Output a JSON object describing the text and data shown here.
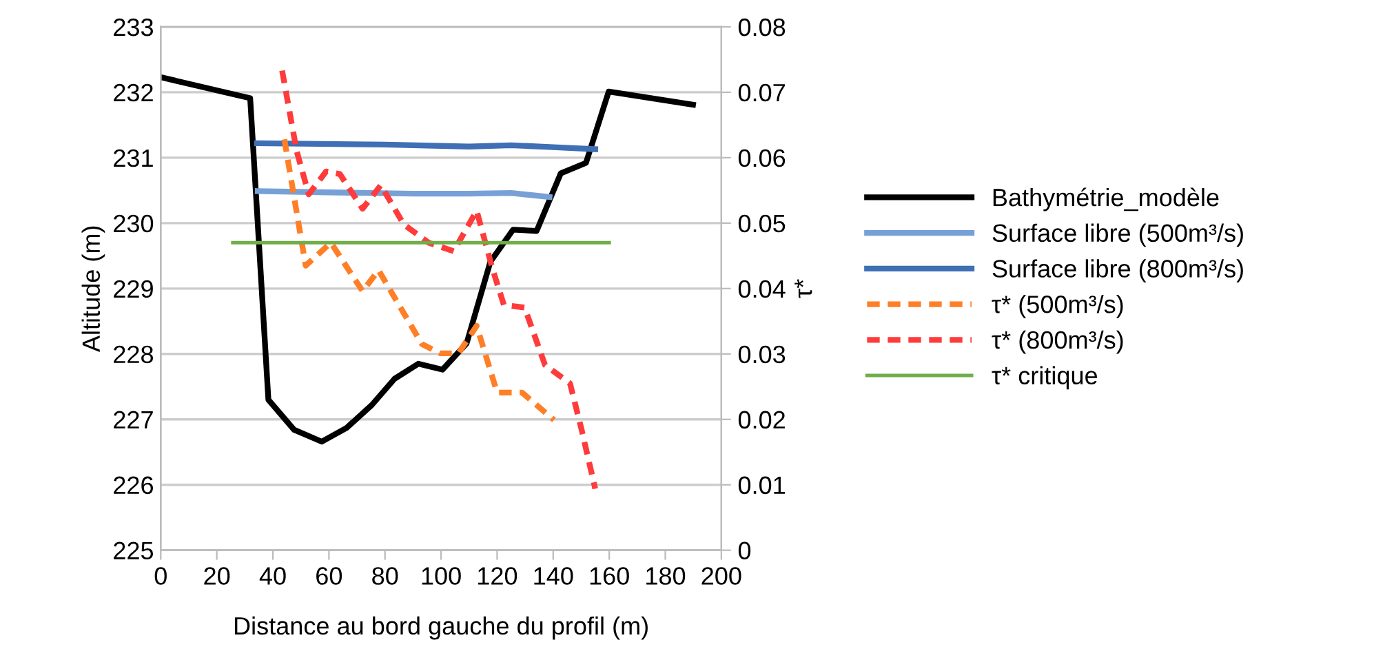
{
  "chart_data": {
    "type": "line",
    "xlabel": "Distance au bord gauche du profil (m)",
    "ylabel": "Altitude (m)",
    "y2label": "τ*",
    "xlim": [
      0,
      200
    ],
    "xticks": [
      0,
      20,
      40,
      60,
      80,
      100,
      120,
      140,
      160,
      180,
      200
    ],
    "ylim": [
      225,
      233
    ],
    "yticks": [
      225,
      226,
      227,
      228,
      229,
      230,
      231,
      232,
      233
    ],
    "y2lim": [
      0,
      0.08
    ],
    "y2ticks": [
      {
        "value": 0,
        "label": "0"
      },
      {
        "value": 0.01,
        "label": "0.01"
      },
      {
        "value": 0.02,
        "label": "0.02"
      },
      {
        "value": 0.03,
        "label": "0.03"
      },
      {
        "value": 0.04,
        "label": "0.04"
      },
      {
        "value": 0.05,
        "label": "0.05"
      },
      {
        "value": 0.06,
        "label": "0.06"
      },
      {
        "value": 0.07,
        "label": "0.07"
      },
      {
        "value": 0.08,
        "label": "0.08"
      }
    ],
    "grid": "y",
    "legend": "right",
    "marker": "none",
    "series": [
      {
        "name": "Bathymétrie_modèle",
        "color": "#000000",
        "line_style": "solid",
        "x": [
          0,
          31.9,
          38.4,
          47.6,
          57.4,
          66.3,
          75.3,
          83.4,
          91.9,
          100.5,
          109.1,
          117.6,
          125.7,
          134.1,
          142.7,
          151.7,
          159.8,
          189.9
        ],
        "values": [
          232.23,
          231.91,
          227.3,
          226.84,
          226.66,
          226.87,
          227.22,
          227.62,
          227.85,
          227.76,
          228.16,
          229.41,
          229.9,
          229.88,
          230.76,
          230.92,
          232.01,
          231.81
        ]
      },
      {
        "name": "Surface libre (500m³/s)",
        "color": "#77a1d6",
        "line_style": "solid",
        "x": [
          34.6,
          60,
          90,
          110,
          125,
          138.7
        ],
        "values": [
          230.49,
          230.47,
          230.45,
          230.45,
          230.46,
          230.4
        ]
      },
      {
        "name": "Surface libre (800m³/s)",
        "color": "#3f6fb4",
        "line_style": "solid",
        "x": [
          34.3,
          80,
          110,
          125,
          140,
          155
        ],
        "values": [
          231.22,
          231.2,
          231.17,
          231.19,
          231.16,
          231.13
        ]
      },
      {
        "name": "τ* (500m³/s)",
        "color": "#ff7f27",
        "line_style": "dashed",
        "axis": "y2",
        "x": [
          44.1,
          51.7,
          60.7,
          72.0,
          77.7,
          93.2,
          99.7,
          106.2,
          112.7,
          120.0,
          128.9,
          140.3
        ],
        "values": [
          0.0628,
          0.0435,
          0.047,
          0.0396,
          0.0428,
          0.0315,
          0.0301,
          0.0301,
          0.0343,
          0.0241,
          0.0241,
          0.0199
        ]
      },
      {
        "name": "τ* (800m³/s)",
        "color": "#ff3b3b",
        "line_style": "dashed",
        "axis": "y2",
        "x": [
          43.3,
          48.5,
          52.8,
          59.0,
          63.9,
          72.0,
          78.5,
          86.7,
          95.6,
          104.5,
          112.7,
          118.3,
          122.4,
          129.8,
          137.1,
          146.0,
          150.1,
          155.0
        ],
        "values": [
          0.0733,
          0.061,
          0.0544,
          0.0579,
          0.0575,
          0.0522,
          0.0558,
          0.0498,
          0.047,
          0.0457,
          0.0519,
          0.0431,
          0.0375,
          0.0371,
          0.0283,
          0.0255,
          0.0185,
          0.0094
        ]
      },
      {
        "name": "τ* critique",
        "color": "#70ad47",
        "line_style": "solid",
        "axis": "y2",
        "x": [
          25.7,
          160
        ],
        "values": [
          0.047,
          0.047
        ]
      }
    ]
  }
}
